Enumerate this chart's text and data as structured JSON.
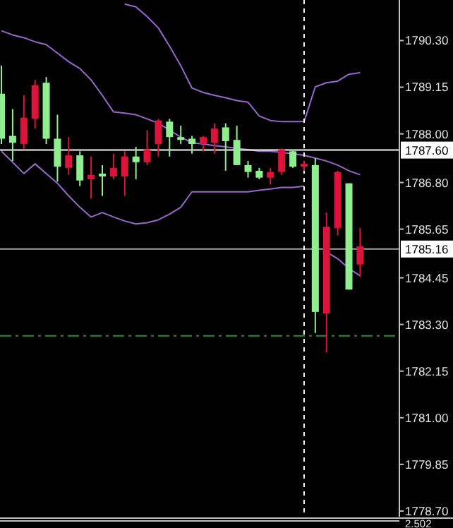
{
  "chart_data": {
    "type": "candlestick",
    "categories": [
      null,
      null,
      null,
      null,
      null,
      null,
      null,
      null,
      null,
      null,
      null,
      null,
      null,
      null,
      null,
      null,
      null,
      null,
      null,
      null,
      null,
      null,
      null,
      null,
      null,
      null,
      null,
      null,
      null,
      null,
      null,
      null,
      null
    ],
    "ohlc": [
      [
        1787.88,
        1789.68,
        1787.75,
        1788.99
      ],
      [
        1787.78,
        1788.61,
        1787.33,
        1787.95
      ],
      [
        1788.4,
        1788.95,
        1787.61,
        1787.75
      ],
      [
        1789.2,
        1789.33,
        1788.13,
        1788.37
      ],
      [
        1787.88,
        1789.4,
        1787.75,
        1789.26
      ],
      [
        1787.19,
        1788.47,
        1786.82,
        1787.88
      ],
      [
        1787.47,
        1787.92,
        1786.99,
        1787.16
      ],
      [
        1786.85,
        1787.57,
        1786.71,
        1787.47
      ],
      [
        1786.99,
        1787.44,
        1786.4,
        1786.88
      ],
      [
        1786.95,
        1787.23,
        1786.47,
        1787.02
      ],
      [
        1787.16,
        1787.51,
        1786.88,
        1786.95
      ],
      [
        1787.44,
        1787.57,
        1786.47,
        1786.95
      ],
      [
        1787.3,
        1787.68,
        1786.88,
        1787.44
      ],
      [
        1787.61,
        1788.09,
        1787.23,
        1787.3
      ],
      [
        1788.33,
        1788.37,
        1787.44,
        1787.75
      ],
      [
        1787.92,
        1788.37,
        1787.44,
        1788.3
      ],
      [
        1787.85,
        1788.2,
        1787.75,
        1787.92
      ],
      [
        1787.75,
        1787.95,
        1787.51,
        1787.88
      ],
      [
        1787.92,
        1787.95,
        1787.57,
        1787.75
      ],
      [
        1788.13,
        1788.26,
        1787.51,
        1787.78
      ],
      [
        1787.82,
        1788.26,
        1787.09,
        1788.16
      ],
      [
        1787.23,
        1788.2,
        1787.23,
        1787.85
      ],
      [
        1787.06,
        1787.33,
        1786.92,
        1787.23
      ],
      [
        1786.92,
        1787.16,
        1786.88,
        1787.09
      ],
      [
        1787.06,
        1787.16,
        1786.75,
        1786.92
      ],
      [
        1787.61,
        1787.64,
        1786.99,
        1787.06
      ],
      [
        1787.19,
        1787.61,
        1787.16,
        1787.57
      ],
      [
        1787.26,
        1787.33,
        1787.09,
        1787.19
      ],
      [
        1783.61,
        1787.4,
        1783.09,
        1787.23
      ],
      [
        1785.71,
        1786.06,
        1782.61,
        1783.57
      ],
      [
        1787.06,
        1787.09,
        1785.5,
        1785.68
      ],
      [
        1784.16,
        1786.78,
        1784.16,
        1786.78
      ],
      [
        1785.23,
        1785.68,
        1784.47,
        1784.78
      ]
    ],
    "colors": [
      "#90ee90",
      "#90ee90",
      "#dc143c",
      "#dc143c",
      "#90ee90",
      "#90ee90",
      "#dc143c",
      "#90ee90",
      "#dc143c",
      "#90ee90",
      "#dc143c",
      "#dc143c",
      "#90ee90",
      "#dc143c",
      "#dc143c",
      "#90ee90",
      "#90ee90",
      "#90ee90",
      "#dc143c",
      "#dc143c",
      "#90ee90",
      "#90ee90",
      "#90ee90",
      "#90ee90",
      "#dc143c",
      "#dc143c",
      "#90ee90",
      "#dc143c",
      "#90ee90",
      "#dc143c",
      "#dc143c",
      "#90ee90",
      "#dc143c"
    ],
    "series": [
      {
        "type": "line",
        "color": "#9966cc",
        "values": [
          null,
          null,
          null,
          null,
          null,
          null,
          null,
          null,
          null,
          null,
          null,
          1791.2,
          1791.13,
          1790.89,
          1790.61,
          1790.16,
          1789.68,
          1789.13,
          1789.02,
          1788.95,
          1788.89,
          1788.82,
          1788.78,
          1788.44,
          1788.33,
          1788.3,
          1788.3,
          1788.3,
          1789.16,
          1789.26,
          1789.3,
          1789.47,
          1789.51
        ]
      },
      {
        "type": "line",
        "color": "#9966cc",
        "values": [
          1790.54,
          1790.44,
          1790.37,
          1790.27,
          1790.2,
          1789.99,
          1789.78,
          1789.61,
          1789.33,
          1788.95,
          1788.54,
          1788.51,
          1788.47,
          1788.37,
          1788.26,
          1788.09,
          1787.92,
          1787.78,
          1787.75,
          1787.71,
          1787.68,
          1787.64,
          1787.61,
          1787.57,
          1787.57,
          1787.54,
          1787.51,
          1787.47,
          1787.4,
          1787.33,
          1787.23,
          1787.09,
          1786.99
        ]
      },
      {
        "type": "line",
        "color": "#9966cc",
        "values": [
          1787.57,
          1787.3,
          1787.02,
          1787.26,
          1787.02,
          1786.78,
          1786.47,
          1786.19,
          1785.95,
          1786.06,
          1785.95,
          1785.85,
          1785.78,
          1785.81,
          1785.88,
          1786.02,
          1786.19,
          1786.57,
          1786.57,
          1786.57,
          1786.57,
          1786.57,
          1786.57,
          1786.61,
          1786.64,
          1786.68,
          1786.68,
          1786.71,
          null,
          1785.09,
          1784.92,
          1784.68,
          1784.5
        ]
      }
    ],
    "ylim": [
      1778.56,
      1791.3
    ],
    "yticks": [
      {
        "value": 1790.3,
        "label": "1790.30"
      },
      {
        "value": 1789.15,
        "label": "1789.15"
      },
      {
        "value": 1788,
        "label": "1788.00"
      },
      {
        "value": 1786.8,
        "label": "1786.80"
      },
      {
        "value": 1785.65,
        "label": "1785.65"
      },
      {
        "value": 1784.45,
        "label": "1784.45"
      },
      {
        "value": 1783.3,
        "label": "1783.30"
      },
      {
        "value": 1782.15,
        "label": "1782.15"
      },
      {
        "value": 1781,
        "label": "1781.00"
      },
      {
        "value": 1779.85,
        "label": "1779.85"
      },
      {
        "value": 1778.7,
        "label": "1778.70"
      }
    ],
    "ref_lines": [
      {
        "axis": "y",
        "value": 1787.6,
        "label": "1787.60",
        "color": "#ffffff",
        "line_style": "solid"
      },
      {
        "axis": "y",
        "value": 1785.16,
        "label": "1785.16",
        "color": "#a0a0a0",
        "line_style": "solid"
      },
      {
        "axis": "y",
        "value": 1783.02,
        "label": null,
        "color": "#2e8b3a",
        "line_style": "dashdot"
      }
    ],
    "annotations": [
      "2.502"
    ],
    "grid": false,
    "tick_labels": "y"
  }
}
